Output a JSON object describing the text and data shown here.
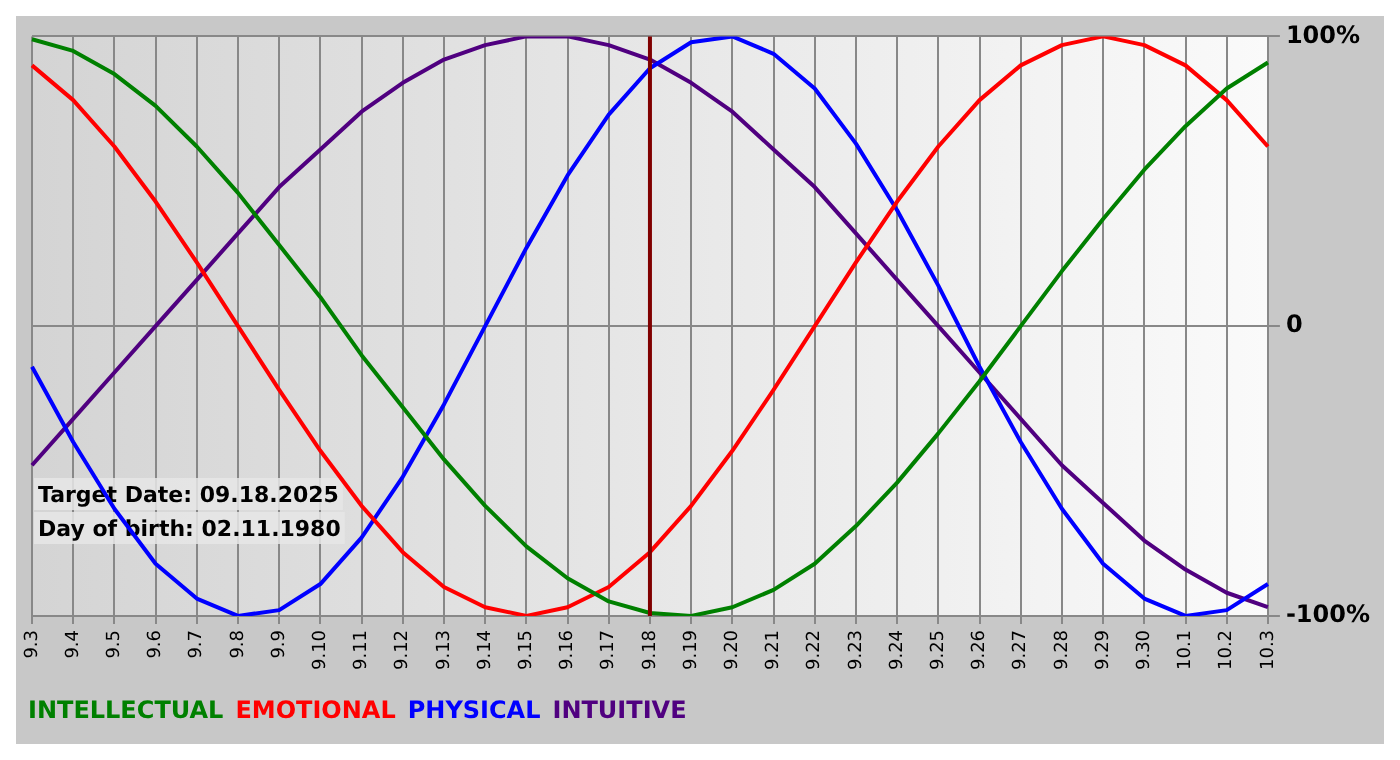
{
  "chart_data": {
    "type": "line",
    "categories": [
      "9.3",
      "9.4",
      "9.5",
      "9.6",
      "9.7",
      "9.8",
      "9.9",
      "9.10",
      "9.11",
      "9.12",
      "9.13",
      "9.14",
      "9.15",
      "9.16",
      "9.17",
      "9.18",
      "9.19",
      "9.20",
      "9.21",
      "9.22",
      "9.23",
      "9.24",
      "9.25",
      "9.26",
      "9.27",
      "9.28",
      "9.29",
      "9.30",
      "10.1",
      "10.2",
      "10.3"
    ],
    "series": [
      {
        "name": "INTELLECTUAL",
        "color": "#008000",
        "values": [
          99,
          95,
          87,
          76,
          62,
          46,
          28,
          10,
          -10,
          -28,
          -46,
          -62,
          -76,
          -87,
          -95,
          -99,
          -100,
          -97,
          -91,
          -82,
          -69,
          -54,
          -37,
          -19,
          0,
          19,
          37,
          54,
          69,
          82,
          91
        ]
      },
      {
        "name": "EMOTIONAL",
        "color": "#ff0000",
        "values": [
          90,
          78,
          62,
          43,
          22,
          0,
          -22,
          -43,
          -62,
          -78,
          -90,
          -97,
          -100,
          -97,
          -90,
          -78,
          -62,
          -43,
          -22,
          0,
          22,
          43,
          62,
          78,
          90,
          97,
          100,
          97,
          90,
          78,
          62
        ]
      },
      {
        "name": "PHYSICAL",
        "color": "#0000ff",
        "values": [
          -14,
          -40,
          -63,
          -82,
          -94,
          -100,
          -98,
          -89,
          -73,
          -52,
          -27,
          0,
          27,
          52,
          73,
          89,
          98,
          100,
          94,
          82,
          63,
          40,
          14,
          -14,
          -40,
          -63,
          -82,
          -94,
          -100,
          -98,
          -89
        ]
      },
      {
        "name": "INTUITIVE",
        "color": "#500080",
        "values": [
          -48,
          -32,
          -16,
          0,
          16,
          32,
          48,
          61,
          74,
          84,
          92,
          97,
          100,
          100,
          97,
          92,
          84,
          74,
          61,
          48,
          32,
          16,
          0,
          -16,
          -32,
          -48,
          -61,
          -74,
          -84,
          -92,
          -97
        ]
      }
    ],
    "ylim": [
      -100,
      100
    ],
    "yticks": [
      {
        "value": -100,
        "label": "-100%"
      },
      {
        "value": 0,
        "label": "0"
      },
      {
        "value": 100,
        "label": "100%"
      }
    ],
    "ref_lines": [
      {
        "axis": "x",
        "value": "9.18",
        "color": "#800000"
      }
    ],
    "annotations": [
      "Target Date: 09.18.2025",
      "Day of birth: 02.11.1980"
    ],
    "grid": true,
    "legend": "bottom left",
    "marker": "none",
    "line_style": "solid"
  }
}
